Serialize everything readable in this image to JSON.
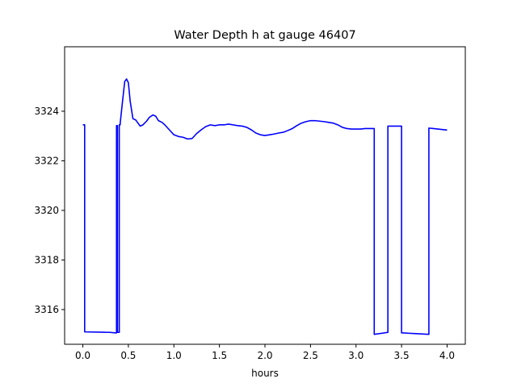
{
  "chart_data": {
    "type": "line",
    "title": "Water Depth h at gauge 46407",
    "xlabel": "hours",
    "ylabel": "",
    "xlim": [
      -0.2,
      4.2
    ],
    "ylim": [
      3314.6,
      3326.6
    ],
    "xticks": [
      0.0,
      0.5,
      1.0,
      1.5,
      2.0,
      2.5,
      3.0,
      3.5,
      4.0
    ],
    "xtick_labels": [
      "0.0",
      "0.5",
      "1.0",
      "1.5",
      "2.0",
      "2.5",
      "3.0",
      "3.5",
      "4.0"
    ],
    "yticks": [
      3316,
      3318,
      3320,
      3322,
      3324
    ],
    "ytick_labels": [
      "3316",
      "3318",
      "3320",
      "3322",
      "3324"
    ],
    "grid": false,
    "series": [
      {
        "color": "#0000ff",
        "x": [
          0.0,
          0.02,
          0.02,
          0.3,
          0.35,
          0.37,
          0.37,
          0.38,
          0.38,
          0.4,
          0.4,
          0.41,
          0.41,
          0.43,
          0.46,
          0.48,
          0.5,
          0.52,
          0.55,
          0.58,
          0.6,
          0.63,
          0.66,
          0.7,
          0.73,
          0.77,
          0.8,
          0.83,
          0.87,
          0.9,
          0.95,
          1.0,
          1.05,
          1.1,
          1.15,
          1.2,
          1.25,
          1.3,
          1.35,
          1.4,
          1.45,
          1.5,
          1.55,
          1.6,
          1.65,
          1.7,
          1.75,
          1.8,
          1.85,
          1.9,
          1.95,
          2.0,
          2.05,
          2.1,
          2.15,
          2.2,
          2.25,
          2.3,
          2.35,
          2.4,
          2.45,
          2.5,
          2.55,
          2.6,
          2.65,
          2.7,
          2.75,
          2.8,
          2.85,
          2.9,
          2.95,
          3.0,
          3.05,
          3.1,
          3.15,
          3.2,
          3.2,
          3.35,
          3.35,
          3.5,
          3.5,
          3.8,
          3.8,
          3.85,
          3.9,
          3.95,
          4.0
        ],
        "y": [
          3323.45,
          3323.45,
          3315.1,
          3315.08,
          3315.06,
          3315.06,
          3323.42,
          3323.42,
          3315.08,
          3315.08,
          3323.45,
          3323.45,
          3323.5,
          3324.2,
          3325.2,
          3325.3,
          3325.15,
          3324.4,
          3323.7,
          3323.65,
          3323.55,
          3323.4,
          3323.45,
          3323.6,
          3323.75,
          3323.85,
          3323.8,
          3323.62,
          3323.55,
          3323.45,
          3323.25,
          3323.05,
          3322.98,
          3322.95,
          3322.88,
          3322.9,
          3323.1,
          3323.25,
          3323.38,
          3323.45,
          3323.42,
          3323.45,
          3323.45,
          3323.48,
          3323.45,
          3323.42,
          3323.4,
          3323.35,
          3323.25,
          3323.12,
          3323.05,
          3323.02,
          3323.05,
          3323.08,
          3323.12,
          3323.15,
          3323.22,
          3323.3,
          3323.42,
          3323.52,
          3323.58,
          3323.62,
          3323.62,
          3323.6,
          3323.58,
          3323.55,
          3323.52,
          3323.45,
          3323.35,
          3323.3,
          3323.28,
          3323.28,
          3323.28,
          3323.3,
          3323.3,
          3323.3,
          3315.0,
          3315.08,
          3323.4,
          3323.4,
          3315.06,
          3315.0,
          3323.32,
          3323.3,
          3323.28,
          3323.26,
          3323.24
        ]
      }
    ]
  }
}
